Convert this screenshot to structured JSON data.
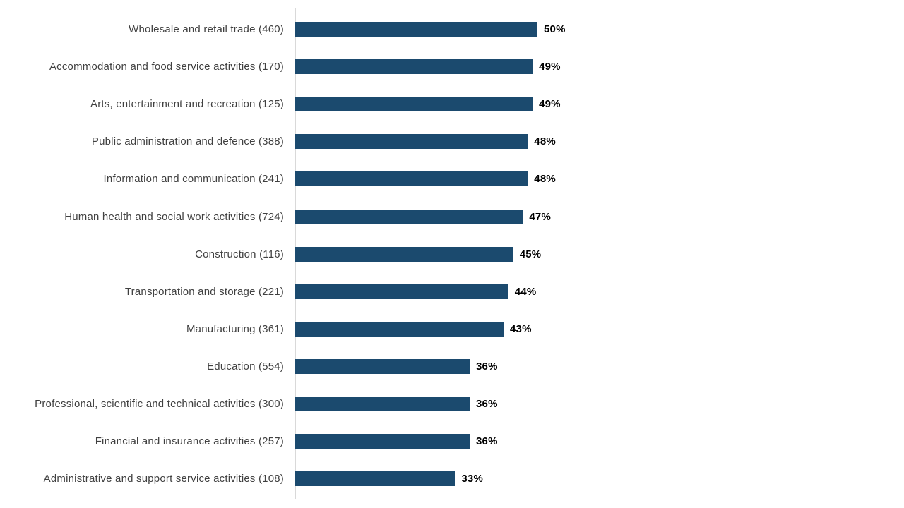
{
  "chart_data": {
    "type": "bar",
    "orientation": "horizontal",
    "title": "",
    "xlabel": "",
    "ylabel": "",
    "categories": [
      "Wholesale and retail trade  (460)",
      "Accommodation and food service activities  (170)",
      "Arts, entertainment and recreation  (125)",
      "Public administration and defence  (388)",
      "Information and communication  (241)",
      "Human health and social work activities  (724)",
      "Construction  (116)",
      "Transportation and storage  (221)",
      "Manufacturing  (361)",
      "Education  (554)",
      "Professional, scientific and technical activities  (300)",
      "Financial and insurance activities  (257)",
      "Administrative and support service activities  (108)"
    ],
    "counts": [
      460,
      170,
      125,
      388,
      241,
      724,
      116,
      221,
      361,
      554,
      300,
      257,
      108
    ],
    "values": [
      50,
      49,
      49,
      48,
      48,
      47,
      45,
      44,
      43,
      36,
      36,
      36,
      33
    ],
    "value_labels": [
      "50%",
      "49%",
      "49%",
      "48%",
      "48%",
      "47%",
      "45%",
      "44%",
      "43%",
      "36%",
      "36%",
      "36%",
      "33%"
    ],
    "xlim": [
      0,
      62
    ],
    "grid": false,
    "legend": false,
    "bar_color": "#1b4a6e",
    "category_label_color": "#404040",
    "value_label_color": "#000000",
    "axis_line_color": "#d9d9d9"
  }
}
